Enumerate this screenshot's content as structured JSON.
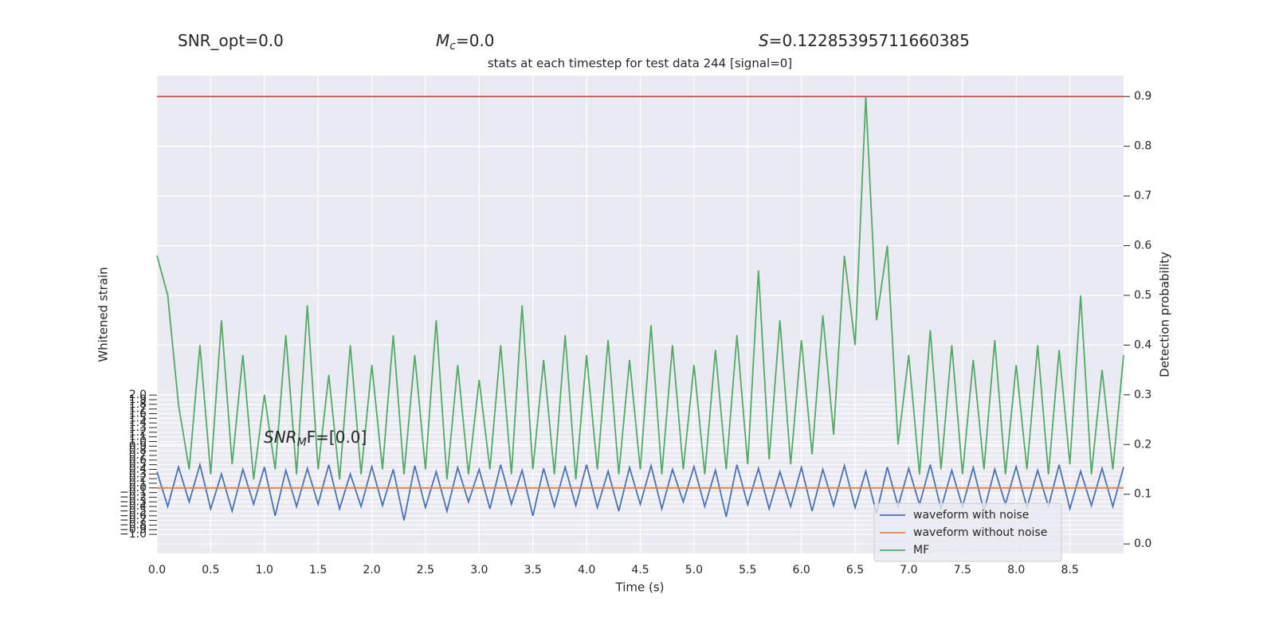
{
  "chart_data": {
    "type": "line",
    "title": "stats at each timestep for test data 244 [signal=0]",
    "header": [
      {
        "main": "SNR_opt=0.0"
      },
      {
        "main": "M",
        "sub": "c",
        "rest": "=0.0"
      },
      {
        "main": "S",
        "rest": "=0.12285395711660385"
      }
    ],
    "annotation": {
      "main": "SNR",
      "sub": "M",
      "rest": "F=[0.0]"
    },
    "xlabel": "Time (s)",
    "ylabel": "Whitened strain",
    "y2label": "Detection probability",
    "xlim": [
      0,
      9.0
    ],
    "ylim": [
      -1.41,
      8.88
    ],
    "y2lim": [
      -0.019,
      0.942
    ],
    "xticks": [
      {
        "value": 0,
        "label": "0.0"
      },
      {
        "value": 0.5,
        "label": "0.5"
      },
      {
        "value": 1,
        "label": "1.0"
      },
      {
        "value": 1.5,
        "label": "1.5"
      },
      {
        "value": 2,
        "label": "2.0"
      },
      {
        "value": 2.5,
        "label": "2.5"
      },
      {
        "value": 3,
        "label": "3.0"
      },
      {
        "value": 3.5,
        "label": "3.5"
      },
      {
        "value": 4,
        "label": "4.0"
      },
      {
        "value": 4.5,
        "label": "4.5"
      },
      {
        "value": 5,
        "label": "5.0"
      },
      {
        "value": 5.5,
        "label": "5.5"
      },
      {
        "value": 6,
        "label": "6.0"
      },
      {
        "value": 6.5,
        "label": "6.5"
      },
      {
        "value": 7,
        "label": "7.0"
      },
      {
        "value": 7.5,
        "label": "7.5"
      },
      {
        "value": 8,
        "label": "8.0"
      },
      {
        "value": 8.5,
        "label": "8.5"
      }
    ],
    "yticks": [
      {
        "value": -1,
        "label": "−1.0"
      },
      {
        "value": -0.9,
        "label": "−0.9"
      },
      {
        "value": -0.8,
        "label": "−0.8"
      },
      {
        "value": -0.7,
        "label": "−0.7"
      },
      {
        "value": -0.6,
        "label": "−0.6"
      },
      {
        "value": -0.5,
        "label": "−0.5"
      },
      {
        "value": -0.4,
        "label": "−0.4"
      },
      {
        "value": -0.3,
        "label": "−0.3"
      },
      {
        "value": -0.2,
        "label": "−0.2"
      },
      {
        "value": -0.1,
        "label": "−0.1"
      },
      {
        "value": 0,
        "label": "0.0"
      },
      {
        "value": 0.1,
        "label": "0.1"
      },
      {
        "value": 0.2,
        "label": "0.2"
      },
      {
        "value": 0.3,
        "label": "0.3"
      },
      {
        "value": 0.4,
        "label": "0.4"
      },
      {
        "value": 0.5,
        "label": "0.5"
      },
      {
        "value": 0.6,
        "label": "0.6"
      },
      {
        "value": 0.7,
        "label": "0.7"
      },
      {
        "value": 0.8,
        "label": "0.8"
      },
      {
        "value": 0.9,
        "label": "0.9"
      },
      {
        "value": 1,
        "label": "1.0"
      },
      {
        "value": 1.1,
        "label": "1.1"
      },
      {
        "value": 1.2,
        "label": "1.2"
      },
      {
        "value": 1.3,
        "label": "1.3"
      },
      {
        "value": 1.4,
        "label": "1.4"
      },
      {
        "value": 1.5,
        "label": "1.5"
      },
      {
        "value": 1.6,
        "label": "1.6"
      },
      {
        "value": 1.7,
        "label": "1.7"
      },
      {
        "value": 1.8,
        "label": "1.8"
      },
      {
        "value": 1.9,
        "label": "1.9"
      },
      {
        "value": 2,
        "label": "2.0"
      }
    ],
    "y2ticks": [
      {
        "value": 0,
        "label": "0.0"
      },
      {
        "value": 0.1,
        "label": "0.1"
      },
      {
        "value": 0.2,
        "label": "0.2"
      },
      {
        "value": 0.3,
        "label": "0.3"
      },
      {
        "value": 0.4,
        "label": "0.4"
      },
      {
        "value": 0.5,
        "label": "0.5"
      },
      {
        "value": 0.6,
        "label": "0.6"
      },
      {
        "value": 0.7,
        "label": "0.7"
      },
      {
        "value": 0.8,
        "label": "0.8"
      },
      {
        "value": 0.9,
        "label": "0.9"
      }
    ],
    "grid": true,
    "legend": "lower right",
    "hlines": [
      {
        "axis": "y2",
        "value": 0.9,
        "color": "#c44e52"
      }
    ],
    "x": [
      0,
      0.1,
      0.2,
      0.3,
      0.4,
      0.5,
      0.6,
      0.7,
      0.8,
      0.9,
      1,
      1.1,
      1.2,
      1.3,
      1.4,
      1.5,
      1.6,
      1.7,
      1.8,
      1.9,
      2,
      2.1,
      2.2,
      2.3,
      2.4,
      2.5,
      2.6,
      2.7,
      2.8,
      2.9,
      3,
      3.1,
      3.2,
      3.3,
      3.4,
      3.5,
      3.6,
      3.7,
      3.8,
      3.9,
      4,
      4.1,
      4.2,
      4.3,
      4.4,
      4.5,
      4.6,
      4.7,
      4.8,
      4.9,
      5,
      5.1,
      5.2,
      5.3,
      5.4,
      5.5,
      5.6,
      5.7,
      5.8,
      5.9,
      6,
      6.1,
      6.2,
      6.3,
      6.4,
      6.5,
      6.6,
      6.7,
      6.8,
      6.9,
      7,
      7.1,
      7.2,
      7.3,
      7.4,
      7.5,
      7.6,
      7.7,
      7.8,
      7.9,
      8,
      8.1,
      8.2,
      8.3,
      8.4,
      8.5,
      8.6,
      8.7,
      8.8,
      8.9,
      9
    ],
    "series": [
      {
        "name": "waveform with noise",
        "color": "#4c72b0",
        "values": [
          0.35,
          -0.4,
          0.45,
          -0.3,
          0.5,
          -0.45,
          0.3,
          -0.5,
          0.4,
          -0.35,
          0.45,
          -0.6,
          0.38,
          -0.4,
          0.42,
          -0.35,
          0.5,
          -0.45,
          0.3,
          -0.4,
          0.46,
          -0.38,
          0.4,
          -0.7,
          0.48,
          -0.42,
          0.35,
          -0.5,
          0.44,
          -0.3,
          0.4,
          -0.45,
          0.5,
          -0.35,
          0.38,
          -0.6,
          0.42,
          -0.4,
          0.45,
          -0.38,
          0.5,
          -0.42,
          0.36,
          -0.5,
          0.44,
          -0.35,
          0.48,
          -0.45,
          0.4,
          -0.3,
          0.46,
          -0.4,
          0.38,
          -0.62,
          0.5,
          -0.36,
          0.42,
          -0.45,
          0.35,
          -0.4,
          0.44,
          -0.5,
          0.4,
          -0.38,
          0.48,
          -0.42,
          0.36,
          -0.55,
          0.45,
          -0.4,
          0.42,
          -0.36,
          0.5,
          -0.45,
          0.38,
          -0.4,
          0.44,
          -0.5,
          0.4,
          -0.35,
          0.46,
          -0.42,
          0.38,
          -0.4,
          0.5,
          -0.45,
          0.36,
          -0.38,
          0.42,
          -0.4,
          0.45
        ]
      },
      {
        "name": "waveform without noise",
        "color": "#dd8452",
        "x": [
          0,
          9
        ],
        "values": [
          0,
          0
        ]
      },
      {
        "name": "MF",
        "color": "#55a868",
        "axis": "y2",
        "values": [
          0.58,
          0.5,
          0.28,
          0.15,
          0.4,
          0.14,
          0.45,
          0.16,
          0.38,
          0.13,
          0.3,
          0.15,
          0.42,
          0.14,
          0.48,
          0.15,
          0.34,
          0.13,
          0.4,
          0.14,
          0.36,
          0.15,
          0.42,
          0.14,
          0.38,
          0.15,
          0.45,
          0.13,
          0.36,
          0.14,
          0.33,
          0.15,
          0.4,
          0.14,
          0.48,
          0.15,
          0.37,
          0.14,
          0.42,
          0.13,
          0.38,
          0.15,
          0.41,
          0.14,
          0.37,
          0.15,
          0.44,
          0.14,
          0.4,
          0.15,
          0.36,
          0.14,
          0.39,
          0.15,
          0.42,
          0.16,
          0.55,
          0.17,
          0.45,
          0.16,
          0.41,
          0.18,
          0.46,
          0.22,
          0.58,
          0.4,
          0.9,
          0.45,
          0.6,
          0.2,
          0.38,
          0.14,
          0.43,
          0.15,
          0.4,
          0.14,
          0.37,
          0.15,
          0.41,
          0.14,
          0.36,
          0.15,
          0.4,
          0.14,
          0.39,
          0.16,
          0.5,
          0.14,
          0.35,
          0.15,
          0.38
        ]
      }
    ]
  }
}
